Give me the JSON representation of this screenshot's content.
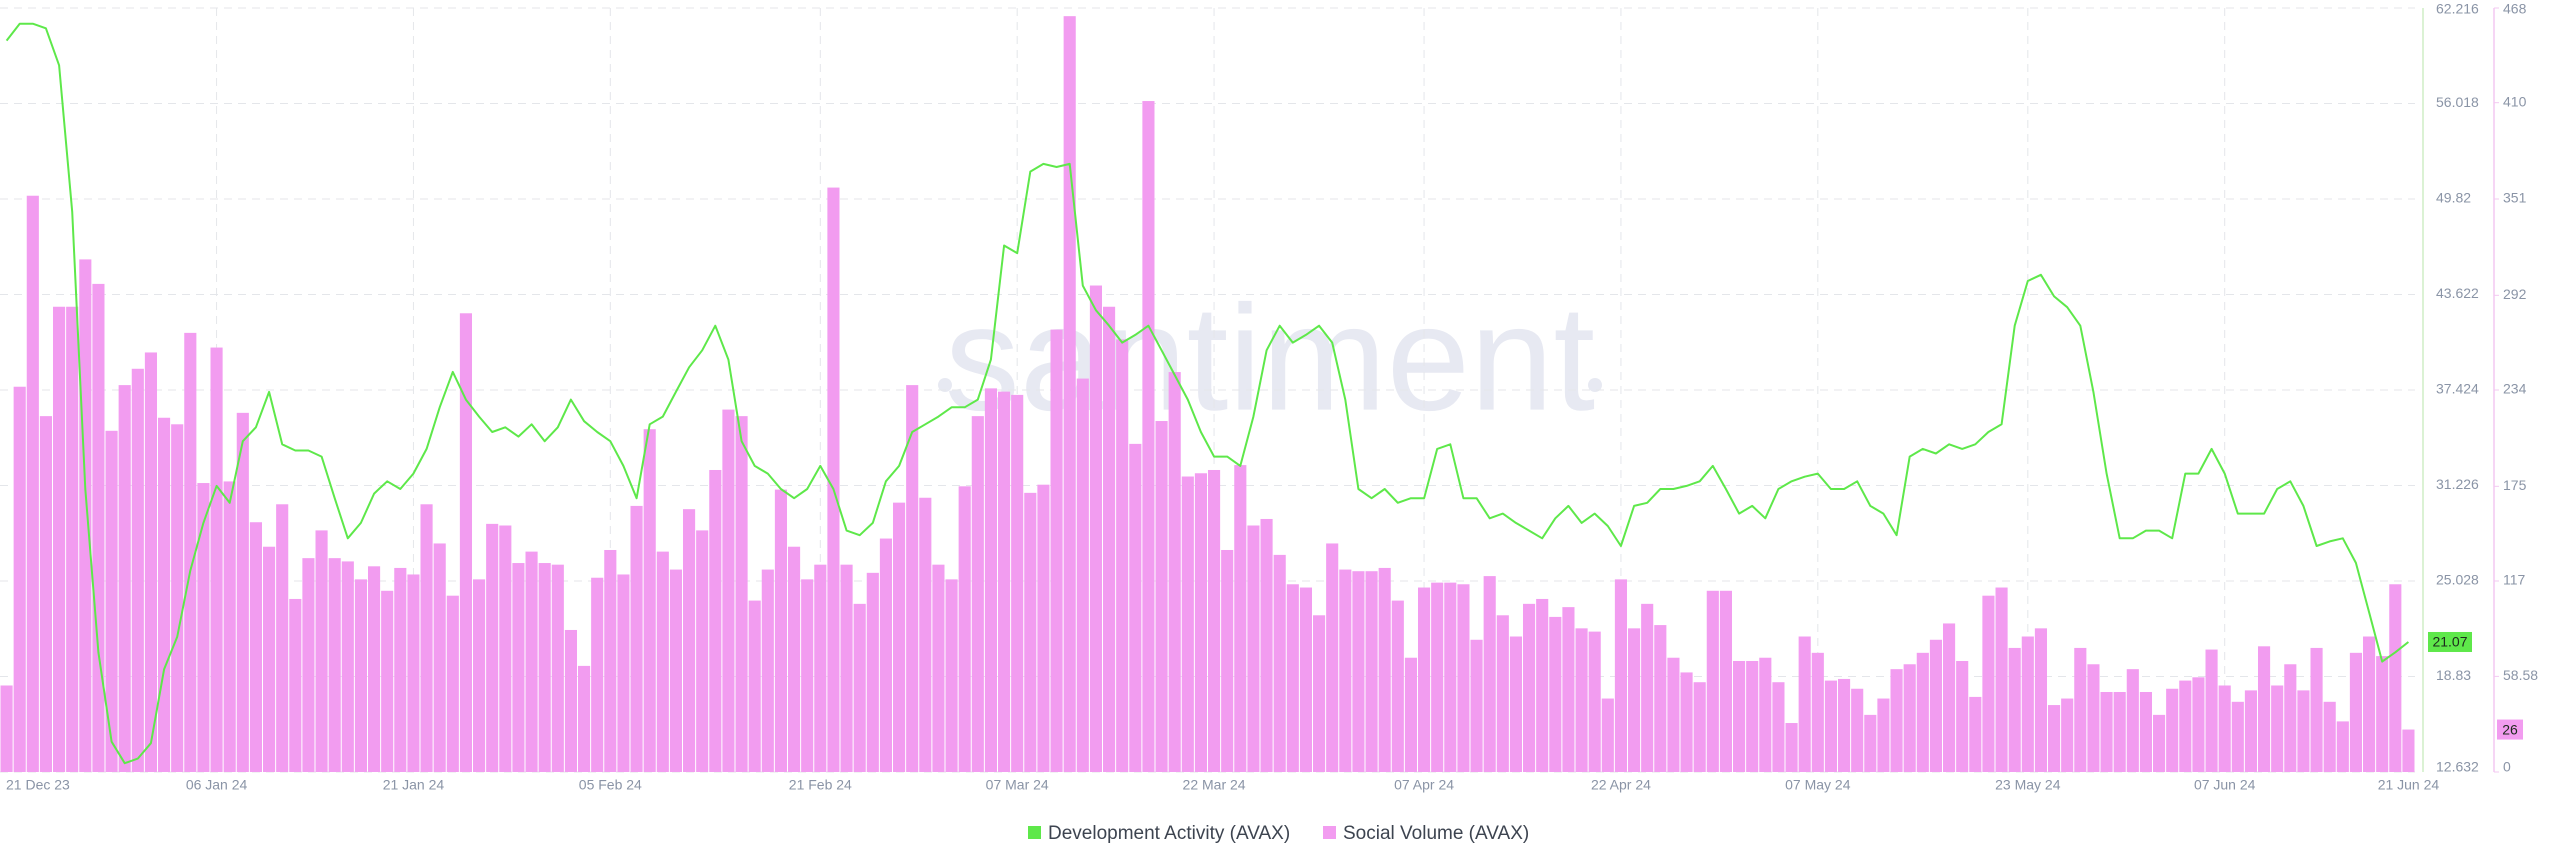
{
  "chart_data": {
    "type": "combo",
    "watermark": "santiment",
    "categories": [
      "21 Dec 23",
      null,
      null,
      null,
      null,
      null,
      null,
      null,
      null,
      null,
      null,
      null,
      null,
      null,
      null,
      null,
      "06 Jan 24",
      null,
      null,
      null,
      null,
      null,
      null,
      null,
      null,
      null,
      null,
      null,
      null,
      null,
      null,
      "21 Jan 24",
      null,
      null,
      null,
      null,
      null,
      null,
      null,
      null,
      null,
      null,
      null,
      null,
      null,
      null,
      "05 Feb 24",
      null,
      null,
      null,
      null,
      null,
      null,
      null,
      null,
      null,
      null,
      null,
      null,
      null,
      null,
      null,
      "21 Feb 24",
      null,
      null,
      null,
      null,
      null,
      null,
      null,
      null,
      null,
      null,
      null,
      null,
      null,
      null,
      "07 Mar 24",
      null,
      null,
      null,
      null,
      null,
      null,
      null,
      null,
      null,
      null,
      null,
      null,
      null,
      null,
      "22 Mar 24",
      null,
      null,
      null,
      null,
      null,
      null,
      null,
      null,
      null,
      null,
      null,
      null,
      null,
      null,
      null,
      "07 Apr 24",
      null,
      null,
      null,
      null,
      null,
      null,
      null,
      null,
      null,
      null,
      null,
      null,
      null,
      null,
      "22 Apr 24",
      null,
      null,
      null,
      null,
      null,
      null,
      null,
      null,
      null,
      null,
      null,
      null,
      null,
      null,
      "07 May 24",
      null,
      null,
      null,
      null,
      null,
      null,
      null,
      null,
      null,
      null,
      null,
      null,
      null,
      null,
      null,
      "23 May 24",
      null,
      null,
      null,
      null,
      null,
      null,
      null,
      null,
      null,
      null,
      null,
      null,
      null,
      null,
      "07 Jun 24",
      null,
      null,
      null,
      null,
      null,
      null,
      null,
      null,
      null,
      null,
      null,
      null,
      null,
      "21 Jun 24"
    ],
    "series": [
      {
        "name": "Development Activity (AVAX)",
        "type": "line",
        "axis": "y",
        "color": "#5ee84a",
        "values": [
          60.1,
          61.2,
          61.2,
          60.9,
          58.5,
          49.0,
          31.0,
          20.4,
          14.6,
          13.2,
          13.5,
          14.5,
          19.3,
          21.4,
          25.7,
          28.8,
          31.2,
          30.1,
          34.1,
          35.0,
          37.3,
          33.9,
          33.5,
          33.5,
          33.1,
          30.4,
          27.8,
          28.8,
          30.7,
          31.5,
          31.0,
          32.0,
          33.6,
          36.3,
          38.6,
          36.8,
          35.7,
          34.7,
          35.0,
          34.4,
          35.2,
          34.1,
          35.0,
          36.8,
          35.4,
          34.7,
          34.1,
          32.5,
          30.4,
          35.2,
          35.7,
          37.3,
          38.9,
          40.0,
          41.6,
          39.4,
          34.1,
          32.5,
          32.0,
          31.0,
          30.4,
          31.0,
          32.5,
          31.0,
          28.3,
          28.0,
          28.8,
          31.5,
          32.5,
          34.7,
          35.2,
          35.7,
          36.3,
          36.3,
          36.8,
          39.4,
          46.8,
          46.3,
          51.6,
          52.1,
          51.9,
          52.1,
          44.2,
          42.6,
          41.6,
          40.5,
          41.0,
          41.6,
          40.0,
          38.4,
          36.8,
          34.7,
          33.1,
          33.1,
          32.5,
          35.7,
          40.0,
          41.6,
          40.5,
          41.0,
          41.6,
          40.5,
          36.8,
          31.0,
          30.4,
          31.0,
          30.1,
          30.4,
          30.4,
          33.6,
          33.9,
          30.4,
          30.4,
          29.1,
          29.4,
          28.8,
          28.3,
          27.8,
          29.1,
          29.9,
          28.8,
          29.4,
          28.6,
          27.3,
          29.9,
          30.1,
          31.0,
          31.0,
          31.2,
          31.5,
          32.5,
          31.0,
          29.4,
          29.9,
          29.1,
          31.0,
          31.5,
          31.8,
          32.0,
          31.0,
          31.0,
          31.5,
          29.9,
          29.4,
          28.0,
          33.1,
          33.6,
          33.3,
          33.9,
          33.6,
          33.9,
          34.7,
          35.2,
          41.6,
          44.5,
          44.9,
          43.5,
          42.8,
          41.6,
          37.3,
          32.0,
          27.8,
          27.8,
          28.3,
          28.3,
          27.8,
          32.0,
          32.0,
          33.6,
          32.0,
          29.4,
          29.4,
          29.4,
          31.0,
          31.5,
          29.9,
          27.3,
          27.6,
          27.8,
          26.2,
          23.0,
          19.8,
          20.4,
          21.07
        ]
      },
      {
        "name": "Social Volume (AVAX)",
        "type": "bar",
        "axis": "y2",
        "color": "#f29cf0",
        "values": [
          53,
          236,
          353,
          218,
          285,
          285,
          314,
          299,
          209,
          237,
          247,
          257,
          217,
          213,
          269,
          177,
          260,
          178,
          220,
          153,
          138,
          164,
          106,
          131,
          148,
          131,
          129,
          118,
          126,
          111,
          125,
          121,
          164,
          140,
          108,
          281,
          118,
          152,
          151,
          128,
          135,
          128,
          127,
          87,
          65,
          119,
          136,
          121,
          163,
          210,
          135,
          124,
          161,
          148,
          185,
          222,
          218,
          105,
          124,
          173,
          138,
          118,
          127,
          358,
          127,
          103,
          122,
          143,
          165,
          237,
          168,
          127,
          118,
          175,
          218,
          235,
          233,
          231,
          171,
          176,
          271,
          463,
          241,
          298,
          285,
          265,
          201,
          411,
          215,
          245,
          181,
          183,
          185,
          136,
          188,
          151,
          155,
          133,
          115,
          113,
          96,
          140,
          124,
          123,
          123,
          125,
          105,
          70,
          113,
          116,
          116,
          115,
          81,
          120,
          96,
          83,
          103,
          106,
          95,
          101,
          88,
          86,
          45,
          118,
          88,
          103,
          90,
          70,
          61,
          55,
          111,
          111,
          68,
          68,
          70,
          55,
          30,
          83,
          73,
          56,
          57,
          51,
          35,
          45,
          63,
          66,
          73,
          81,
          91,
          68,
          46,
          108,
          113,
          76,
          83,
          88,
          41,
          45,
          76,
          66,
          49,
          49,
          63,
          49,
          35,
          51,
          56,
          58,
          75,
          53,
          43,
          50,
          77,
          53,
          66,
          50,
          76,
          43,
          31,
          73,
          83,
          71,
          115,
          26
        ]
      }
    ],
    "ylim": [
      12.632,
      62.216
    ],
    "yticks": [
      12.632,
      18.83,
      25.028,
      31.226,
      37.424,
      43.622,
      49.82,
      56.018,
      62.216
    ],
    "y2lim": [
      0,
      468
    ],
    "y2ticks": [
      0,
      58.58,
      117,
      175,
      234,
      292,
      351,
      410,
      468
    ],
    "grid": true,
    "legend": "bottom"
  }
}
